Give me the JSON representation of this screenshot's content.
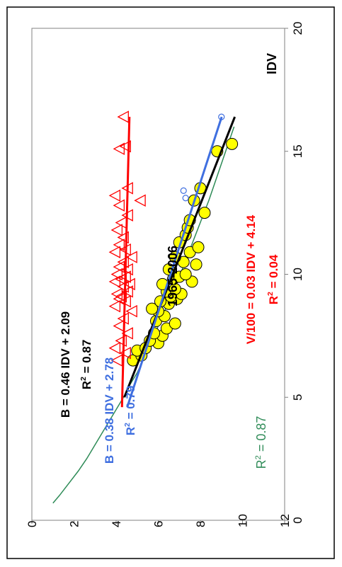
{
  "chart_data": {
    "type": "scatter",
    "orientation": "rotated-90-ccw",
    "title": "1965-2006",
    "xlabel": "IDV",
    "ylabel": "",
    "xlim": [
      0,
      20
    ],
    "ylim": [
      0,
      12
    ],
    "x_ticks": [
      0,
      5,
      10,
      15,
      20
    ],
    "y_ticks": [
      0,
      2,
      4,
      6,
      8,
      10,
      12
    ],
    "grid": false,
    "colors": {
      "black": "#000000",
      "blue": "#3f6fe0",
      "red": "#ff0000",
      "green": "#2e8b57",
      "yellow": "#ffff00"
    },
    "series": [
      {
        "marker": "circle-yellow",
        "color": "#ffff00",
        "x": [
          6.5,
          6.7,
          6.9,
          7.0,
          7.2,
          7.3,
          7.5,
          7.6,
          7.8,
          8.0,
          8.1,
          8.3,
          8.5,
          8.6,
          8.8,
          8.9,
          9.0,
          9.1,
          9.2,
          9.3,
          9.4,
          9.6,
          9.7,
          9.8,
          9.9,
          10.0,
          10.2,
          10.4,
          10.5,
          10.7,
          10.9,
          11.1,
          11.3,
          11.6,
          11.9,
          12.2,
          12.5,
          13.0,
          13.5,
          15.0,
          15.3
        ],
        "y": [
          4.8,
          5.2,
          5.0,
          5.4,
          6.0,
          5.6,
          6.2,
          5.8,
          6.4,
          6.8,
          5.9,
          6.3,
          6.0,
          5.7,
          6.5,
          6.1,
          6.9,
          6.6,
          7.1,
          6.4,
          6.8,
          6.2,
          7.6,
          6.7,
          7.0,
          7.3,
          6.5,
          7.8,
          7.2,
          6.8,
          7.5,
          7.9,
          7.0,
          7.3,
          7.4,
          7.5,
          8.2,
          7.7,
          8.0,
          8.8,
          9.5
        ]
      },
      {
        "marker": "circle-open-blue",
        "color": "#3f6fe0",
        "x": [
          13.1,
          13.4,
          16.4
        ],
        "y": [
          7.3,
          7.2,
          9.0
        ]
      },
      {
        "marker": "triangle-open-red",
        "color": "#ff0000",
        "x": [
          6.5,
          6.8,
          7.0,
          7.3,
          7.6,
          7.9,
          8.2,
          8.5,
          8.7,
          8.9,
          9.0,
          9.1,
          9.2,
          9.3,
          9.5,
          9.6,
          9.7,
          9.8,
          9.9,
          10.0,
          10.2,
          10.3,
          10.5,
          10.7,
          10.9,
          11.0,
          11.2,
          11.5,
          11.8,
          12.1,
          12.4,
          12.8,
          13.0,
          13.2,
          13.5,
          15.1,
          15.2,
          16.4
        ],
        "y": [
          4.1,
          4.5,
          4.0,
          4.3,
          4.6,
          4.2,
          4.4,
          4.8,
          4.0,
          4.5,
          4.2,
          4.3,
          4.1,
          4.6,
          4.4,
          4.7,
          4.0,
          4.3,
          4.5,
          4.1,
          4.6,
          4.2,
          4.4,
          4.8,
          4.0,
          4.5,
          4.2,
          4.4,
          4.1,
          4.3,
          4.6,
          4.2,
          5.2,
          4.0,
          4.6,
          4.2,
          4.5,
          4.4
        ]
      }
    ],
    "fits": [
      {
        "color": "#000000",
        "slope": 0.46,
        "intercept": 2.09,
        "x": [
          5.0,
          16.4
        ],
        "label": "B = 0.46 IDV + 2.09",
        "r2_label": "R",
        "r2_value": " = 0.87"
      },
      {
        "color": "#3f6fe0",
        "slope": 0.38,
        "intercept": 2.78,
        "x": [
          4.6,
          16.4
        ],
        "label": "B = 0.38 IDV + 2.78",
        "r2_label": "R",
        "r2_value": " = 0.79"
      },
      {
        "color": "#ff0000",
        "slope": 0.03,
        "intercept": 4.14,
        "x": [
          4.6,
          16.4
        ],
        "label": "V/100 = 0.03 IDV + 4.14",
        "r2_label": "R",
        "r2_value": " = 0.04"
      }
    ],
    "green_curve": {
      "color": "#2e8b57",
      "x": [
        0.7,
        1.0,
        1.5,
        2.0,
        2.5,
        3.0,
        3.5,
        4.0,
        4.5,
        5.0,
        5.5,
        6.0,
        7.0,
        8.0,
        9.0,
        10.0,
        11.0,
        12.0,
        13.0,
        14.0,
        15.0,
        16.0
      ],
      "y": [
        1.0,
        1.3,
        1.75,
        2.2,
        2.6,
        2.95,
        3.3,
        3.65,
        4.0,
        4.35,
        4.65,
        5.0,
        5.55,
        6.05,
        6.55,
        7.05,
        7.5,
        7.95,
        8.4,
        8.8,
        9.2,
        9.6
      ],
      "r2_label": "R",
      "r2_value": " = 0.87"
    },
    "superscript": "2"
  }
}
